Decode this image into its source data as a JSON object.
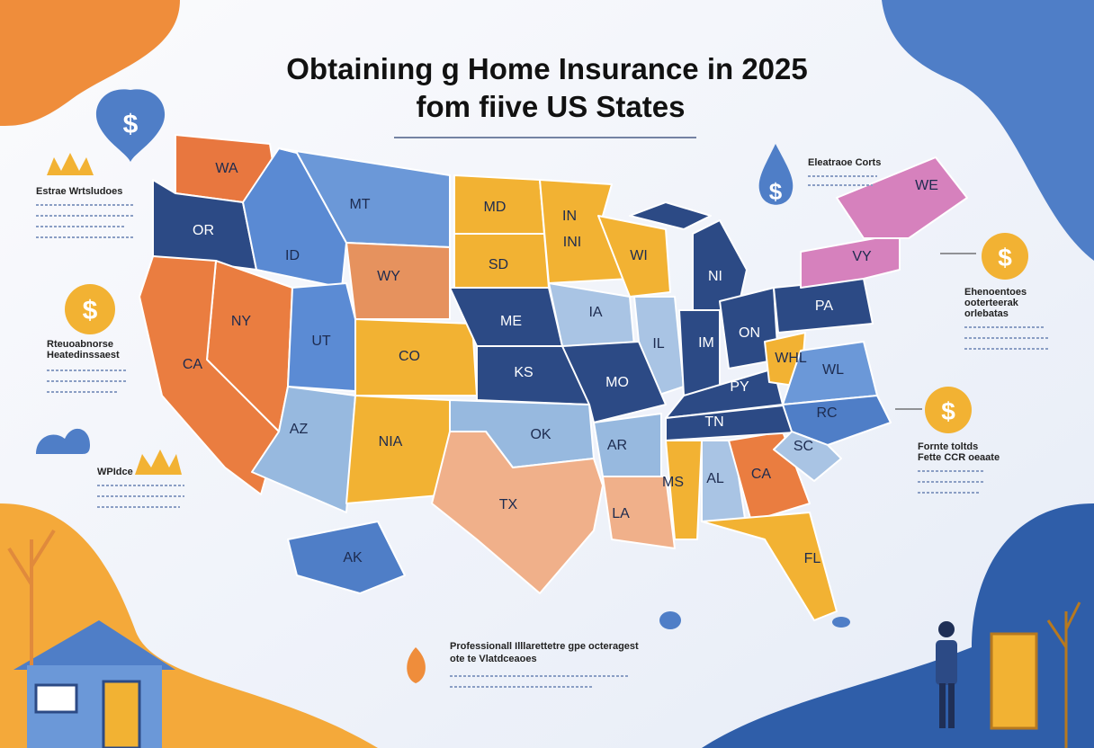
{
  "header": {
    "title_lines": [
      "Obtainiıng g Home Insurance in 2025",
      "fom fiive US States"
    ]
  },
  "callouts": [
    {
      "title_lines": [
        "Estrae Wrtsludoes"
      ]
    },
    {
      "title_lines": [
        "Eleatraoe Corts"
      ]
    },
    {
      "title_lines": [
        "Ehenoentoes",
        "ooterteerak",
        "orlebatas"
      ]
    },
    {
      "title_lines": [
        "Rteuoabnorse",
        "Heatedinssaest"
      ]
    },
    {
      "title_lines": [
        "WPIdce"
      ]
    },
    {
      "title_lines": [
        "Fornte toltds",
        "Fette CCR oeaate"
      ]
    },
    {
      "title_lines": [
        "Professionall Illlarettetre gpe octeragest",
        "ote te Vlatdceaoes"
      ]
    }
  ],
  "map": {
    "state_labels": [
      "WA",
      "OR",
      "MT",
      "ID",
      "WY",
      "NY",
      "CA",
      "UT",
      "CO",
      "AZ",
      "NIA",
      "MD",
      "SD",
      "ME",
      "KS",
      "IN",
      "INI",
      "WI",
      "IA",
      "IL",
      "MO",
      "OK",
      "TX",
      "AR",
      "LA",
      "MS",
      "AL",
      "CA",
      "FL",
      "NI",
      "IM",
      "ON",
      "PY",
      "TN",
      "PA",
      "WL",
      "RC",
      "SC",
      "WHL",
      "VY",
      "WE",
      "AK"
    ]
  }
}
